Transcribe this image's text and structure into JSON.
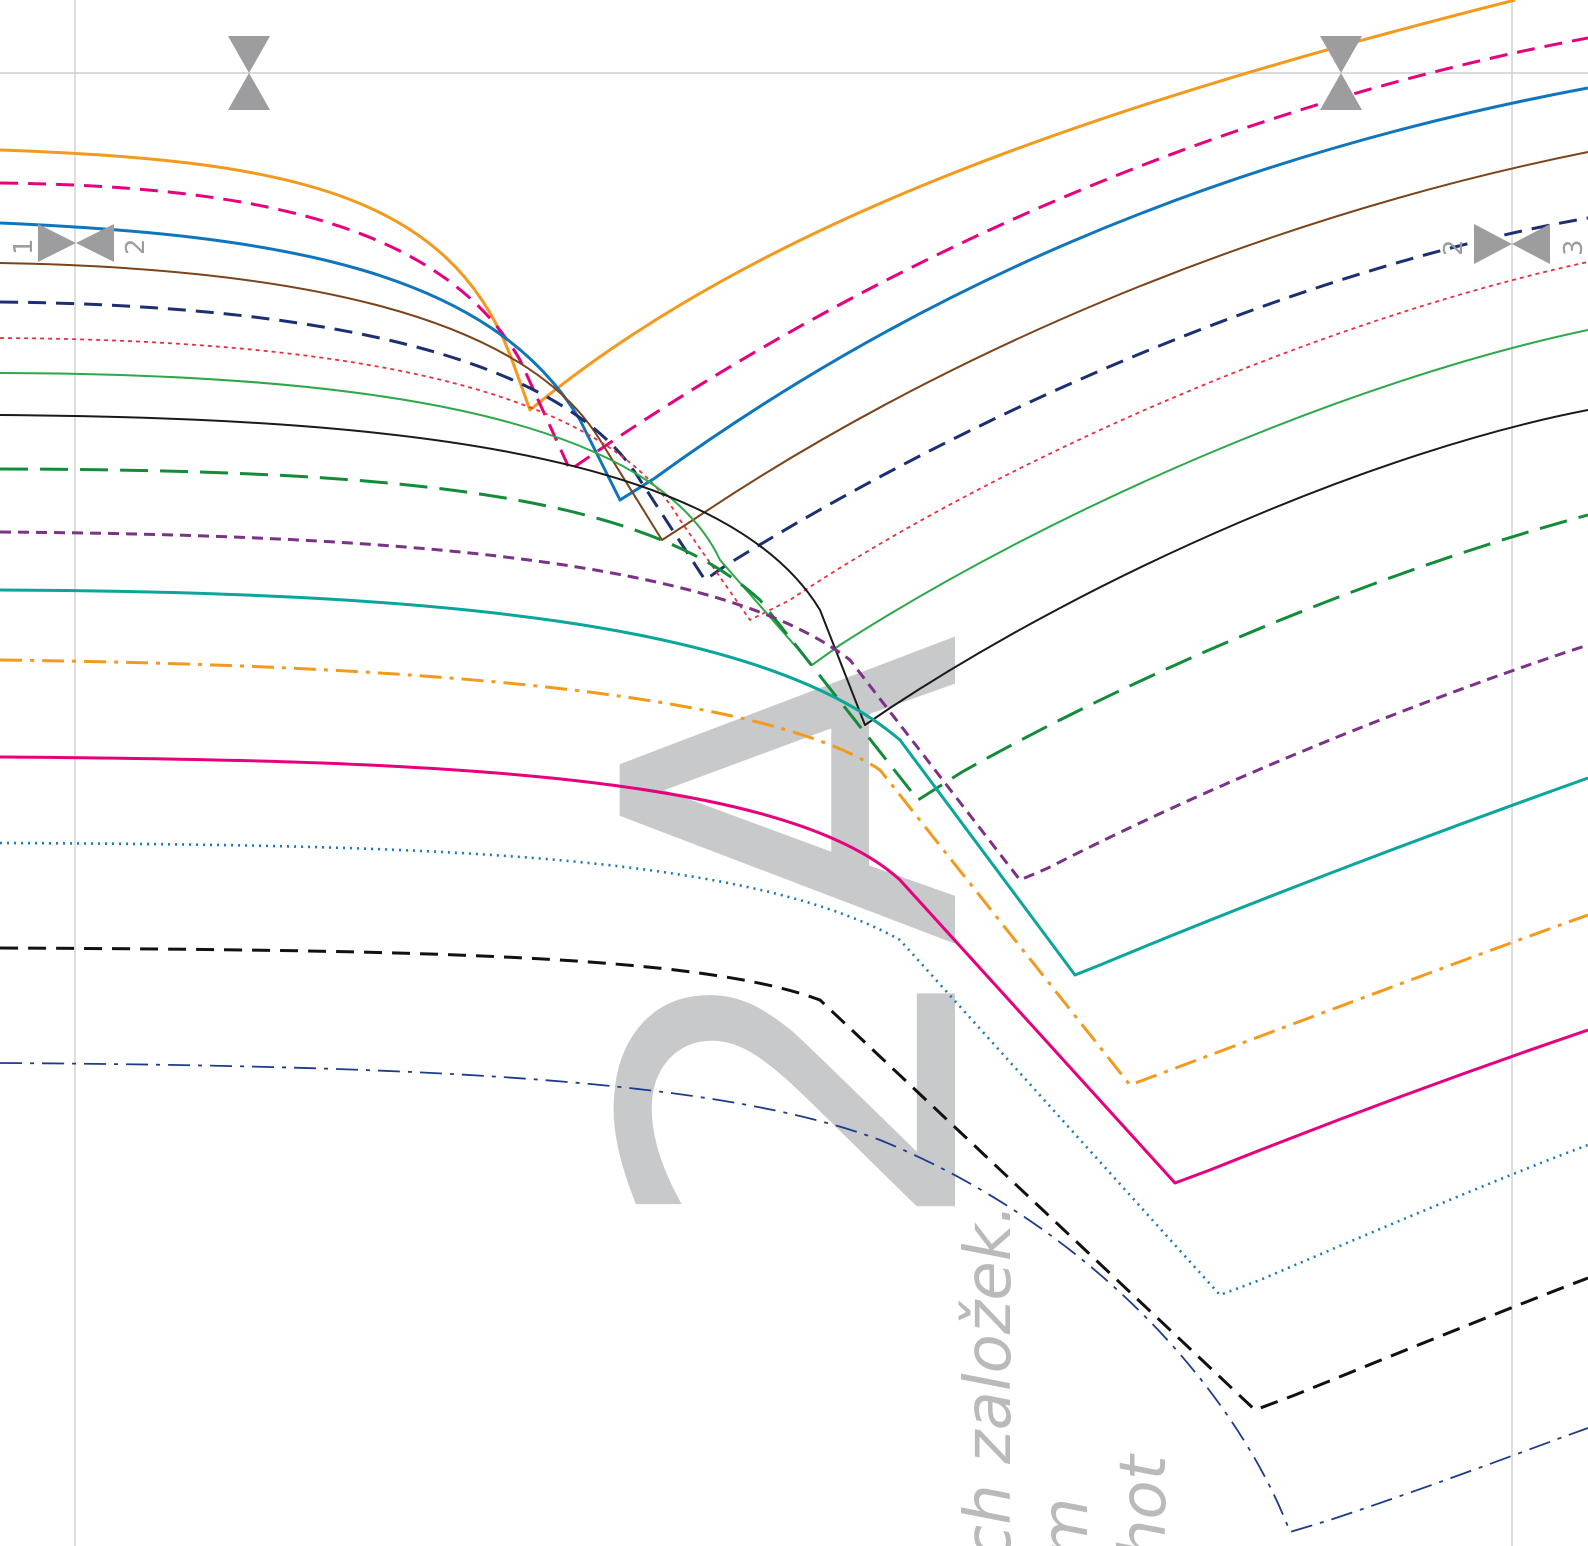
{
  "piece": {
    "label": "2A"
  },
  "notes": [
    "ch založek.",
    "m",
    "hot"
  ],
  "match_marks": {
    "left": [
      "1",
      "2"
    ],
    "right": [
      "2",
      "3"
    ]
  },
  "palette": {
    "gridline": "#cfcfcf",
    "marker": "#9d9d9f",
    "label": "#c8c9cb",
    "note": "#b9babc"
  },
  "size_lines": [
    {
      "color": "#f39a1e",
      "style": "solid"
    },
    {
      "color": "#e6007e",
      "style": "dashed"
    },
    {
      "color": "#0f75bc",
      "style": "solid"
    },
    {
      "color": "#7b4419",
      "style": "solid-thin"
    },
    {
      "color": "#1d2f73",
      "style": "dashed"
    },
    {
      "color": "#e8303d",
      "style": "dotted-fine"
    },
    {
      "color": "#2ea84a",
      "style": "solid-thin"
    },
    {
      "color": "#1a1a1a",
      "style": "solid-thin"
    },
    {
      "color": "#138c3a",
      "style": "long-dash"
    },
    {
      "color": "#7b3289",
      "style": "short-dash"
    },
    {
      "color": "#0aa59b",
      "style": "solid"
    },
    {
      "color": "#f39a1e",
      "style": "dash-dot"
    },
    {
      "color": "#e6007e",
      "style": "solid"
    },
    {
      "color": "#1b78b8",
      "style": "dotted"
    },
    {
      "color": "#111111",
      "style": "dashed"
    },
    {
      "color": "#1d3c8c",
      "style": "dash-dot-thin"
    }
  ]
}
